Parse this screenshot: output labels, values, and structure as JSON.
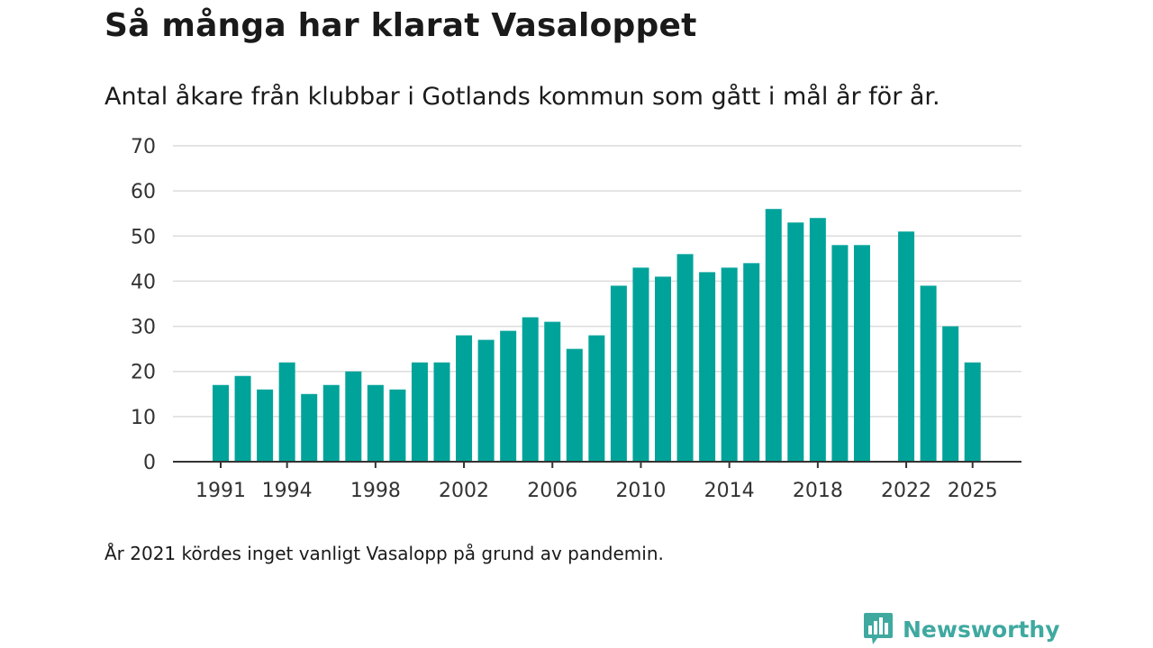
{
  "header": {
    "title": "Så många har klarat Vasaloppet",
    "subtitle": "Antal åkare från klubbar i Gotlands kommun som gått i mål år för år."
  },
  "footer": {
    "note": "År 2021 kördes inget vanligt Vasalopp på grund av pandemin.",
    "brand": "Newsworthy",
    "brand_icon": "bar-chart-speech-bubble-icon"
  },
  "colors": {
    "bar": "#00a39a",
    "grid": "#dcdcdc",
    "axis": "#333333",
    "brand": "#3fa9a0"
  },
  "chart_data": {
    "type": "bar",
    "title": "Så många har klarat Vasaloppet",
    "subtitle": "Antal åkare från klubbar i Gotlands kommun som gått i mål år för år.",
    "xlabel": "",
    "ylabel": "",
    "ylim": [
      0,
      70
    ],
    "yticks": [
      0,
      10,
      20,
      30,
      40,
      50,
      60,
      70
    ],
    "xticks": [
      1991,
      1994,
      1998,
      2002,
      2006,
      2010,
      2014,
      2018,
      2022,
      2025
    ],
    "grid": true,
    "categories": [
      1991,
      1992,
      1993,
      1994,
      1995,
      1996,
      1997,
      1998,
      1999,
      2000,
      2001,
      2002,
      2003,
      2004,
      2005,
      2006,
      2007,
      2008,
      2009,
      2010,
      2011,
      2012,
      2013,
      2014,
      2015,
      2016,
      2017,
      2018,
      2019,
      2020,
      2021,
      2022,
      2023,
      2024,
      2025
    ],
    "values": [
      17,
      19,
      16,
      22,
      15,
      17,
      20,
      17,
      16,
      22,
      22,
      28,
      27,
      29,
      32,
      31,
      25,
      28,
      39,
      43,
      41,
      46,
      42,
      43,
      44,
      56,
      53,
      54,
      48,
      48,
      null,
      51,
      39,
      30,
      22
    ]
  }
}
